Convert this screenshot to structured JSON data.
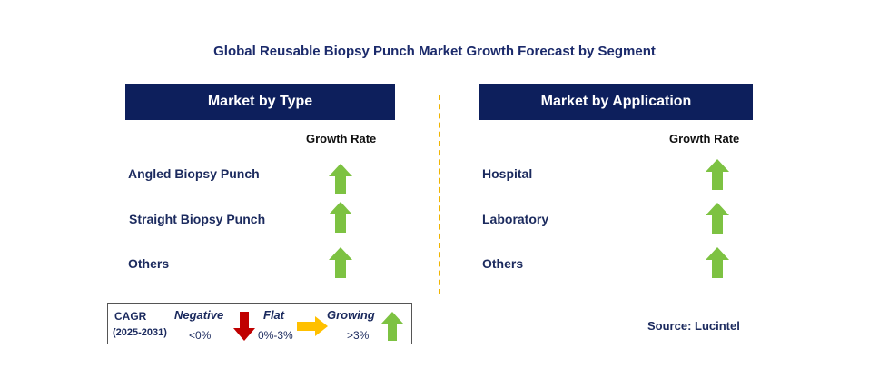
{
  "title": "Global Reusable Biopsy Punch Market Growth Forecast by Segment",
  "left_panel": {
    "header": "Market by Type",
    "growth_rate_label": "Growth Rate",
    "items": [
      {
        "label": "Angled Biopsy Punch",
        "trend": "growing"
      },
      {
        "label": "Straight Biopsy Punch",
        "trend": "growing"
      },
      {
        "label": "Others",
        "trend": "growing"
      }
    ]
  },
  "right_panel": {
    "header": "Market by Application",
    "growth_rate_label": "Growth Rate",
    "items": [
      {
        "label": "Hospital",
        "trend": "growing"
      },
      {
        "label": "Laboratory",
        "trend": "growing"
      },
      {
        "label": "Others",
        "trend": "growing"
      }
    ]
  },
  "legend": {
    "cagr_label": "CAGR",
    "period": "(2025-2031)",
    "negative_label": "Negative",
    "negative_value": "<0%",
    "flat_label": "Flat",
    "flat_value": "0%-3%",
    "growing_label": "Growing",
    "growing_value": ">3%"
  },
  "source": "Source: Lucintel",
  "colors": {
    "header_bg": "#0d1f5c",
    "up_arrow": "#7dc242",
    "down_arrow": "#c00000",
    "flat_arrow": "#ffc000",
    "divider": "#f0b400"
  },
  "icons": [
    "arrow-up-green-icon",
    "arrow-down-red-icon",
    "arrow-right-yellow-icon"
  ]
}
